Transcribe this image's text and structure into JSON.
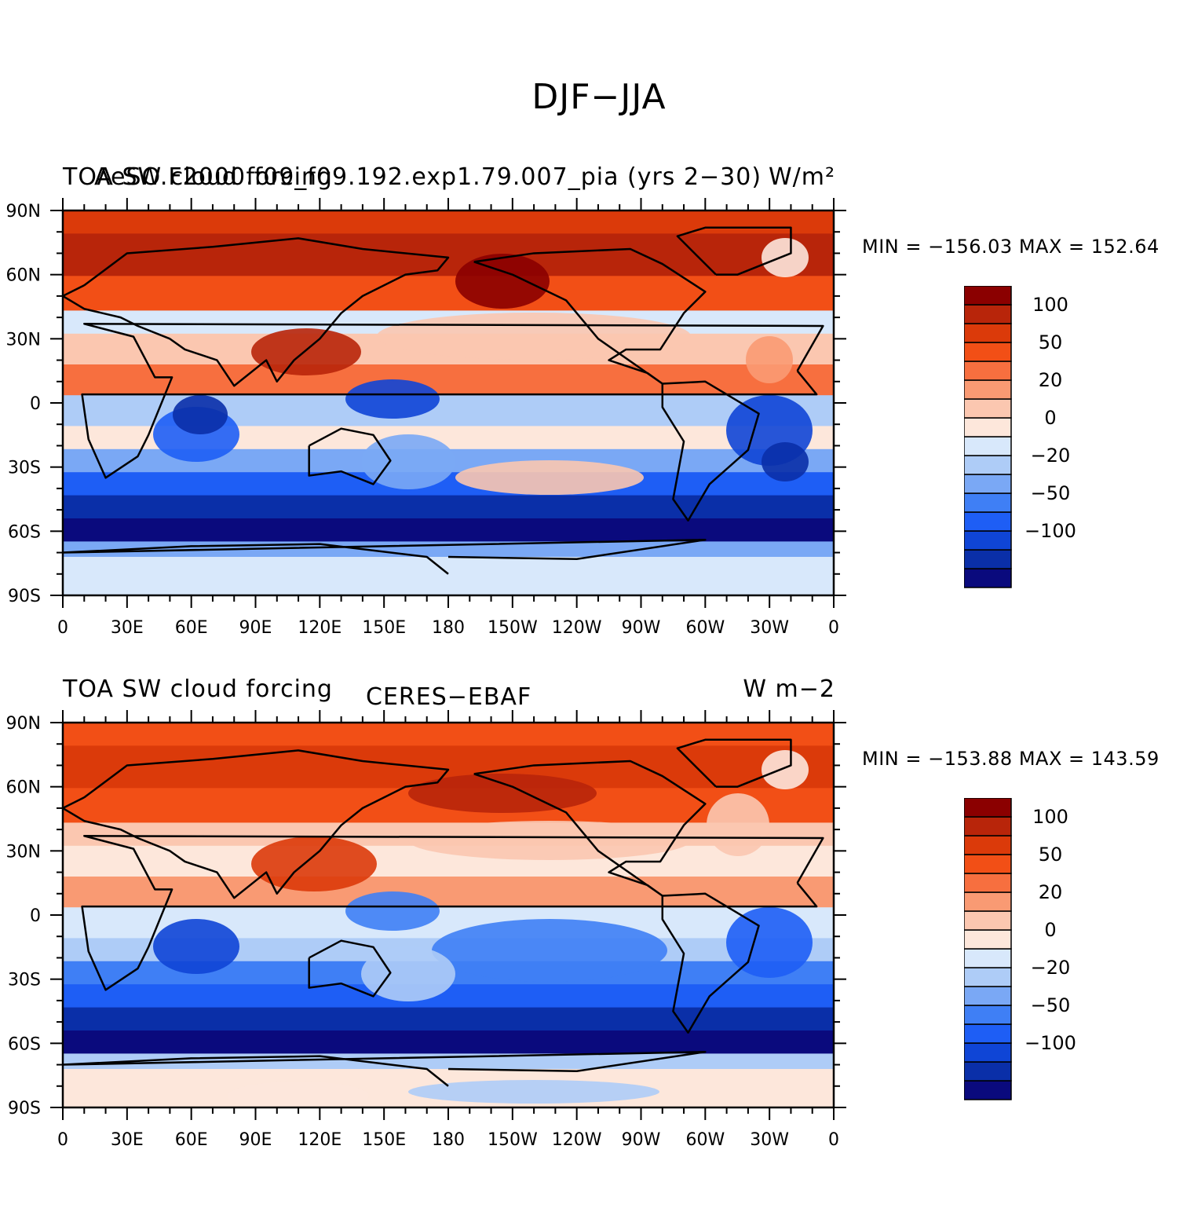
{
  "figure": {
    "title": "DJF−JJA"
  },
  "panels": [
    {
      "left_title": "TOA SW cloud forcing",
      "center_title": "AeSO.F2000.f09_f09.192.exp1.79.007_pia (yrs 2−30)",
      "units_html": "W/m²",
      "minmax": "MIN = −156.03  MAX = 152.64"
    },
    {
      "left_title": "TOA SW cloud forcing",
      "center_title": "CERES−EBAF",
      "units_html": "W m−2",
      "minmax": "MIN = −153.88  MAX = 143.59"
    }
  ],
  "axes": {
    "lat_labels": [
      "90N",
      "60N",
      "30N",
      "0",
      "30S",
      "60S",
      "90S"
    ],
    "lon_labels": [
      "0",
      "30E",
      "60E",
      "90E",
      "120E",
      "150E",
      "180",
      "150W",
      "120W",
      "90W",
      "60W",
      "30W",
      "0"
    ]
  },
  "colorbar": {
    "colors": [
      "#0a0a7d",
      "#0a2fa8",
      "#0f45d6",
      "#1e5ef5",
      "#3f7ff5",
      "#7aa8f5",
      "#aeccf7",
      "#d8e8fb",
      "#fde7db",
      "#fbc7b0",
      "#f99a73",
      "#f76f3f",
      "#f24f16",
      "#db3a0a",
      "#b8250a",
      "#8b0000"
    ],
    "tick_labels": [
      "−100",
      "−50",
      "−20",
      "0",
      "20",
      "50",
      "100"
    ],
    "label_index": [
      2,
      4,
      6,
      8,
      10,
      12,
      14
    ]
  },
  "chart_data": {
    "type": "heatmap",
    "variable": "TOA SW cloud forcing",
    "season_difference": "DJF−JJA",
    "units": "W/m²",
    "x_range": [
      "0",
      "0"
    ],
    "y_range": [
      "90S",
      "90N"
    ],
    "maps": [
      {
        "name": "AeSO.F2000.f09_f09.192.exp1.79.007_pia (yrs 2−30)",
        "min": -156.03,
        "max": 152.64
      },
      {
        "name": "CERES−EBAF",
        "min": -153.88,
        "max": 143.59
      }
    ],
    "contour_levels": [
      -100,
      -50,
      -20,
      0,
      20,
      50,
      100
    ]
  }
}
